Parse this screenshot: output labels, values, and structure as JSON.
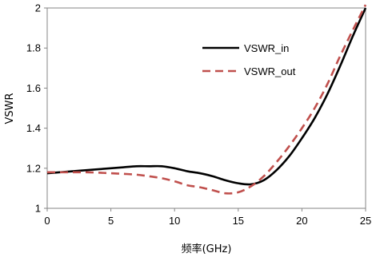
{
  "chart_data": {
    "type": "line",
    "xlabel": "频率(GHz)",
    "ylabel": "VSWR",
    "xlim": [
      0,
      25
    ],
    "ylim": [
      1,
      2
    ],
    "xticks": [
      0,
      5,
      10,
      15,
      20,
      25
    ],
    "yticks": [
      1,
      1.2,
      1.4,
      1.6,
      1.8,
      2
    ],
    "ytick_labels": [
      "1",
      "1.2",
      "1.4",
      "1.6",
      "1.8",
      "2"
    ],
    "grid": false,
    "legend_position": "top-right",
    "series": [
      {
        "name": "VSWR_in",
        "color": "#000000",
        "style": "solid",
        "x": [
          0,
          1,
          2,
          3,
          4,
          5,
          6,
          7,
          8,
          9,
          10,
          11,
          12,
          13,
          14,
          15,
          16,
          17,
          18,
          19,
          20,
          21,
          22,
          23,
          24,
          25
        ],
        "y": [
          1.175,
          1.18,
          1.185,
          1.19,
          1.195,
          1.2,
          1.205,
          1.21,
          1.21,
          1.21,
          1.2,
          1.185,
          1.175,
          1.16,
          1.14,
          1.125,
          1.12,
          1.14,
          1.19,
          1.26,
          1.35,
          1.45,
          1.57,
          1.71,
          1.86,
          2.0
        ]
      },
      {
        "name": "VSWR_out",
        "color": "#c0504d",
        "style": "dashed",
        "x": [
          0,
          1,
          2,
          3,
          4,
          5,
          6,
          7,
          8,
          9,
          10,
          11,
          12,
          13,
          14,
          15,
          16,
          17,
          18,
          19,
          20,
          21,
          22,
          23,
          24,
          25
        ],
        "y": [
          1.18,
          1.18,
          1.18,
          1.18,
          1.178,
          1.175,
          1.172,
          1.168,
          1.16,
          1.15,
          1.135,
          1.115,
          1.105,
          1.09,
          1.075,
          1.08,
          1.11,
          1.16,
          1.23,
          1.31,
          1.4,
          1.5,
          1.62,
          1.76,
          1.89,
          2.02
        ]
      }
    ]
  }
}
